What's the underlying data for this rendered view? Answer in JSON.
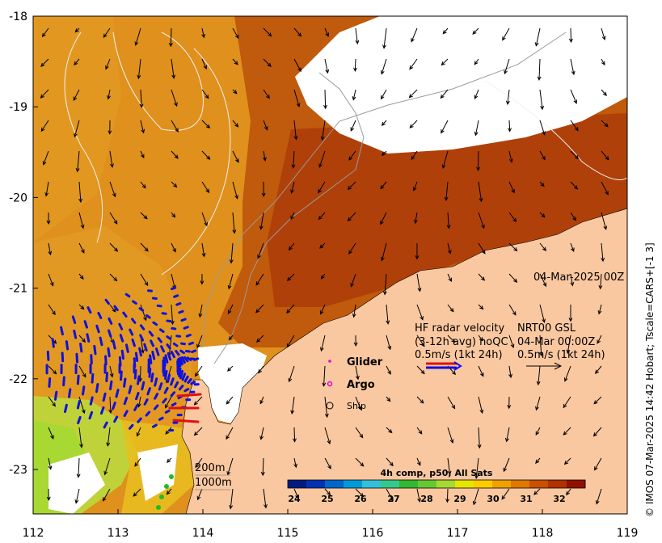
{
  "map": {
    "date_label": "04-Mar-2025 00Z",
    "credit": "© IMOS 07-Mar-2025 14:42 Hobart; Tscale=CARS+[-1 3]",
    "lon_ticks": [
      "112",
      "113",
      "114",
      "115",
      "116",
      "117",
      "118",
      "119"
    ],
    "lat_ticks": [
      "-18",
      "-19",
      "-20",
      "-21",
      "-22",
      "-23"
    ],
    "legend": {
      "hf_title": "HF radar velocity",
      "hf_sub": "(3-12h avg) noQC",
      "hf_scale": "0.5m/s (1kt 24h)",
      "nrt_title": "NRT00 GSL",
      "nrt_sub": "04-Mar 00:00Z",
      "nrt_scale": "0.5m/s (1kt 24h)",
      "glider": "Glider",
      "argo": "Argo",
      "ship": "Ship"
    },
    "isobaths": [
      "200m",
      "1000m"
    ],
    "colorbar": {
      "title": "4h comp, p50, All Sats",
      "ticks": [
        "24",
        "25",
        "26",
        "27",
        "28",
        "29",
        "30",
        "31",
        "32"
      ],
      "colors": [
        "#001a80",
        "#0033b3",
        "#0066cc",
        "#0099d9",
        "#33c0d9",
        "#33c88c",
        "#33b833",
        "#66c833",
        "#a6d933",
        "#e6e600",
        "#ffcc00",
        "#f0a000",
        "#e07800",
        "#c85000",
        "#b03000",
        "#901000"
      ]
    },
    "colors": {
      "land": "#fac8a0",
      "sst_warm": "#e08a14",
      "sst_hot": "#b84a08",
      "hf_vector": "#1010e0",
      "hf_vector_alt": "#e01010",
      "nodata": "#ffffff"
    }
  }
}
